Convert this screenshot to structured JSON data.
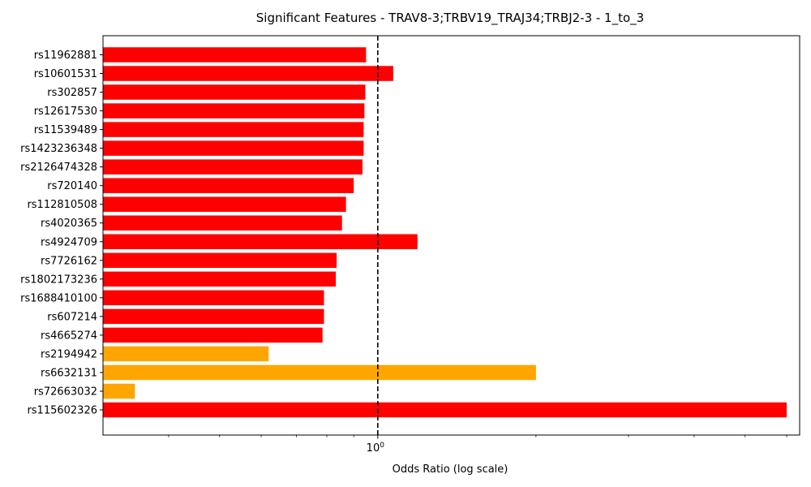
{
  "chart_data": {
    "type": "bar",
    "orientation": "horizontal",
    "title": "Significant Features - TRAV8-3;TRBV19_TRAJ34;TRBJ2-3 - 1_to_3",
    "xlabel": "Odds Ratio (log scale)",
    "ylabel": "",
    "xscale": "log",
    "xlim": [
      0.3,
      6.35
    ],
    "reference_line": {
      "x": 1.0,
      "style": "dashed",
      "color": "#000000"
    },
    "x_major_ticks": [
      {
        "value": 1.0,
        "label": "10",
        "exponent": "0"
      }
    ],
    "x_minor_ticks": [
      0.4,
      0.5,
      0.6,
      0.7,
      0.8,
      0.9,
      2,
      3,
      4,
      5,
      6
    ],
    "grid": false,
    "colors": {
      "red": "#ff0000",
      "orange": "#ffa500"
    },
    "categories": [
      "rs11962881",
      "rs10601531",
      "rs302857",
      "rs12617530",
      "rs11539489",
      "rs1423236348",
      "rs2126474328",
      "rs720140",
      "rs112810508",
      "rs4020365",
      "rs4924709",
      "rs7726162",
      "rs1802173236",
      "rs1688410100",
      "rs607214",
      "rs4665274",
      "rs2194942",
      "rs6632131",
      "rs72663032",
      "rs115602326"
    ],
    "values": [
      0.95,
      1.07,
      0.947,
      0.943,
      0.94,
      0.94,
      0.935,
      0.9,
      0.87,
      0.855,
      1.19,
      0.835,
      0.832,
      0.79,
      0.79,
      0.785,
      0.62,
      2.0,
      0.345,
      6.0
    ],
    "bar_colors": [
      "#ff0000",
      "#ff0000",
      "#ff0000",
      "#ff0000",
      "#ff0000",
      "#ff0000",
      "#ff0000",
      "#ff0000",
      "#ff0000",
      "#ff0000",
      "#ff0000",
      "#ff0000",
      "#ff0000",
      "#ff0000",
      "#ff0000",
      "#ff0000",
      "#ffa500",
      "#ffa500",
      "#ffa500",
      "#ff0000"
    ]
  }
}
